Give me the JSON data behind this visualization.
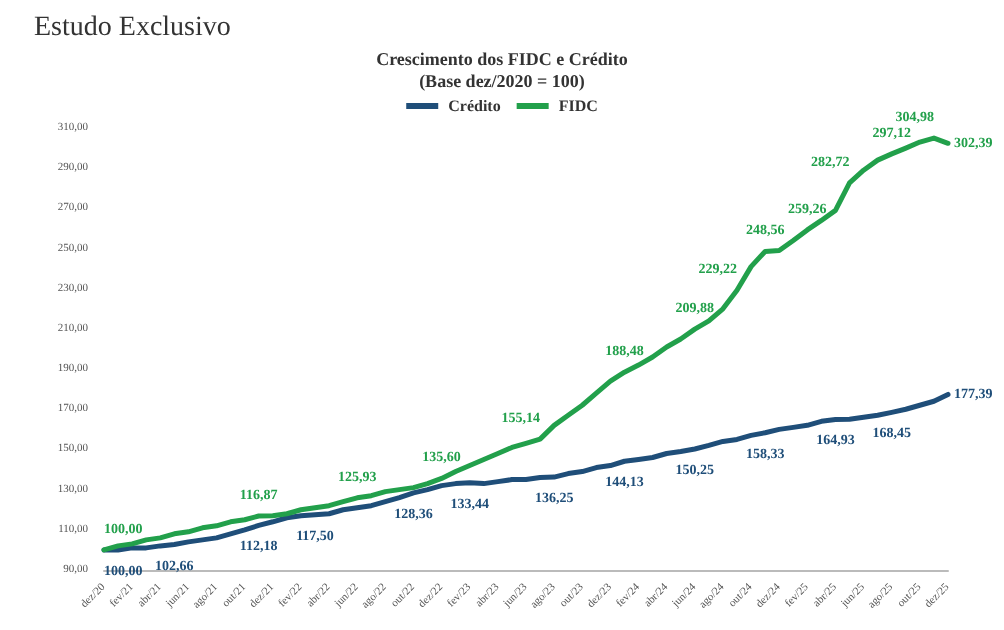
{
  "chart_data": {
    "type": "line",
    "title": "Crescimento dos FIDC e Crédito",
    "subtitle": "(Base dez/2020 = 100)",
    "annotations": [
      "Estudo Exclusivo"
    ],
    "categories": [
      "dez/20",
      null,
      "fev/21",
      null,
      "abr/21",
      null,
      "jun/21",
      null,
      "ago/21",
      null,
      "out/21",
      null,
      "dez/21",
      null,
      "fev/22",
      null,
      "abr/22",
      null,
      "jun/22",
      null,
      "ago/22",
      null,
      "out/22",
      null,
      "dez/22",
      null,
      "fev/23",
      null,
      "abr/23",
      null,
      "jun/23",
      null,
      "ago/23",
      null,
      "out/23",
      null,
      "dez/23",
      null,
      "fev/24",
      null,
      "abr/24",
      null,
      "jun/24",
      null,
      "ago/24",
      null,
      "out/24",
      null,
      "dez/24",
      null,
      "fev/25",
      null,
      "abr/25",
      null,
      "jun/25",
      null,
      "ago/25",
      null,
      "out/25",
      null,
      "dez/25"
    ],
    "series": [
      {
        "name": "Crédito",
        "color": "#1f4e79",
        "values": [
          100,
          100,
          101,
          101,
          102,
          102.66,
          104,
          105,
          106,
          108,
          110,
          112.18,
          114,
          116,
          117,
          117.5,
          118,
          120,
          121,
          122,
          124,
          126,
          128.36,
          130,
          132,
          133,
          133.44,
          133,
          134,
          135,
          135,
          136,
          136.25,
          138,
          139,
          141,
          142,
          144.13,
          145,
          146,
          148,
          149,
          150.25,
          152,
          154,
          155,
          157,
          158.33,
          160,
          161,
          162,
          164,
          164.93,
          165,
          166,
          167,
          168.45,
          170,
          172,
          174,
          177.39
        ],
        "value_labels": [
          "100,00",
          null,
          null,
          null,
          null,
          "102,66",
          null,
          null,
          null,
          null,
          null,
          "112,18",
          null,
          null,
          null,
          "117,50",
          null,
          null,
          null,
          null,
          null,
          null,
          "128,36",
          null,
          null,
          null,
          "133,44",
          null,
          null,
          null,
          null,
          null,
          "136,25",
          null,
          null,
          null,
          null,
          "144,13",
          null,
          null,
          null,
          null,
          "150,25",
          null,
          null,
          null,
          null,
          "158,33",
          null,
          null,
          null,
          null,
          "164,93",
          null,
          null,
          null,
          "168,45",
          null,
          null,
          null,
          "177,39"
        ]
      },
      {
        "name": "FIDC",
        "color": "#22a04b",
        "values": [
          100,
          102,
          103,
          105,
          106,
          108,
          109,
          111,
          112,
          114,
          115,
          116.87,
          117,
          118,
          120,
          121,
          122,
          124,
          125.93,
          127,
          129,
          130,
          131,
          133,
          135.6,
          139,
          142,
          145,
          148,
          151,
          153,
          155.14,
          162,
          167,
          172,
          178,
          184,
          188.48,
          192,
          196,
          201,
          205,
          209.88,
          214,
          220,
          229.22,
          241,
          248.56,
          249,
          254,
          259.26,
          264,
          269,
          282.72,
          289,
          294,
          297.12,
          300,
          303,
          304.98,
          302.39
        ],
        "value_labels": [
          "100,00",
          null,
          null,
          null,
          null,
          null,
          null,
          null,
          null,
          null,
          null,
          "116,87",
          null,
          null,
          null,
          null,
          null,
          null,
          "125,93",
          null,
          null,
          null,
          null,
          null,
          "135,60",
          null,
          null,
          null,
          null,
          null,
          null,
          "155,14",
          null,
          null,
          null,
          null,
          null,
          "188,48",
          null,
          null,
          null,
          null,
          "209,88",
          null,
          null,
          "229,22",
          null,
          "248,56",
          null,
          null,
          "259,26",
          null,
          null,
          "282,72",
          null,
          null,
          "297,12",
          null,
          null,
          "304,98",
          "302,39"
        ]
      }
    ],
    "ylim": [
      90,
      310
    ],
    "yticks": [
      {
        "value": 90,
        "label": "90,00"
      },
      {
        "value": 110,
        "label": "110,00"
      },
      {
        "value": 130,
        "label": "130,00"
      },
      {
        "value": 150,
        "label": "150,00"
      },
      {
        "value": 170,
        "label": "170,00"
      },
      {
        "value": 190,
        "label": "190,00"
      },
      {
        "value": 210,
        "label": "210,00"
      },
      {
        "value": 230,
        "label": "230,00"
      },
      {
        "value": 250,
        "label": "250,00"
      },
      {
        "value": 270,
        "label": "270,00"
      },
      {
        "value": 290,
        "label": "290,00"
      },
      {
        "value": 310,
        "label": "310,00"
      }
    ],
    "grid": false,
    "legend": "top",
    "marker": "none",
    "line_style": "solid"
  }
}
